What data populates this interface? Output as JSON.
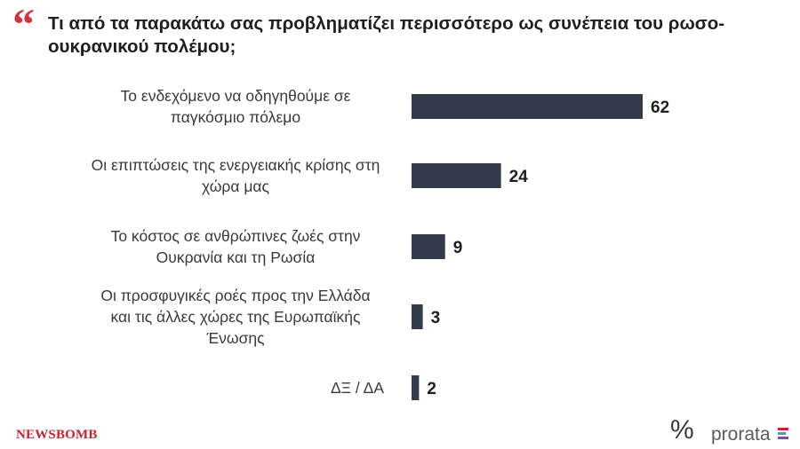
{
  "header": {
    "quote_glyph": "“",
    "title": "Τι από τα παρακάτω σας προβληματίζει περισσότερο ως συνέπεια του ρωσο-ουκρανικού πολέμου;"
  },
  "chart_data": {
    "type": "bar",
    "orientation": "horizontal",
    "categories": [
      [
        "Το ενδεχόμενο να οδηγηθούμε σε",
        "παγκόσμιο πόλεμο"
      ],
      [
        "Οι επιπτώσεις της ενεργειακής κρίσης στη",
        "χώρα μας"
      ],
      [
        "Το κόστος σε ανθρώπινες ζωές στην",
        "Ουκρανία και τη Ρωσία"
      ],
      [
        "Οι προσφυγικές ροές προς την Ελλάδα",
        "και τις άλλες χώρες της Ευρωπαϊκής",
        "Ένωσης"
      ],
      [
        "ΔΞ / ΔΑ"
      ]
    ],
    "values": [
      62,
      24,
      9,
      3,
      2
    ],
    "bar_color": "#323a4c",
    "xlim": [
      0,
      62
    ],
    "grid": false,
    "legend": "none"
  },
  "footer": {
    "left_brand": "NEWSBOMB",
    "percent_logo": "%",
    "right_brand": "prorata",
    "brand_red": "#c9222c"
  }
}
